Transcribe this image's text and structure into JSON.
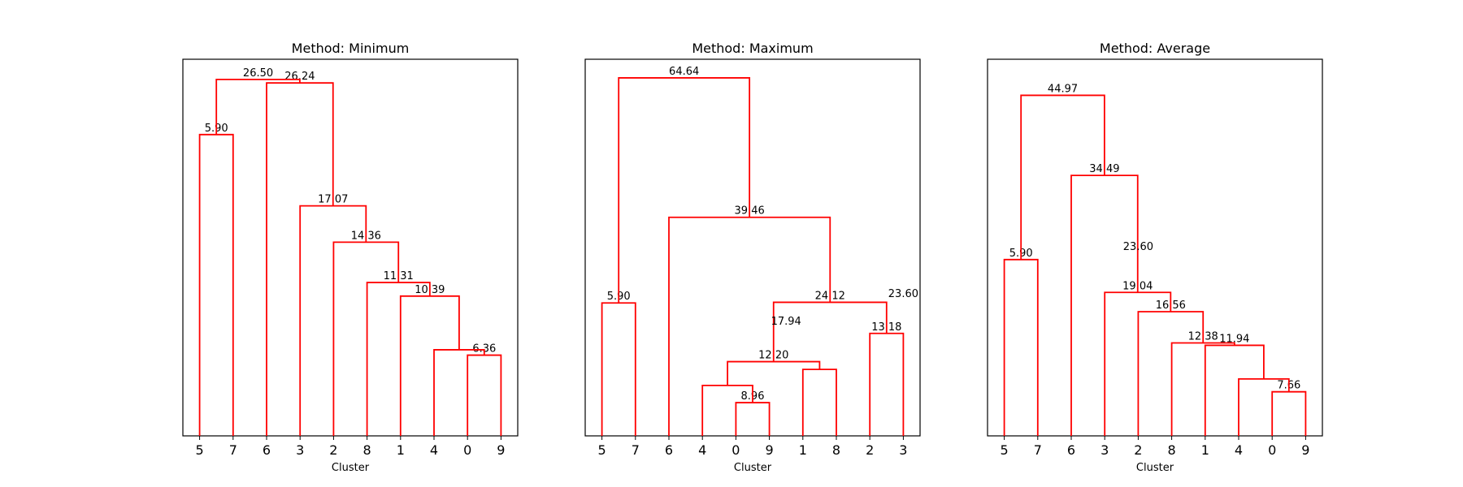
{
  "chart_data": [
    {
      "type": "dendrogram",
      "title": "Method: Minimum",
      "xlabel": "Cluster",
      "leaves": [
        "5",
        "7",
        "6",
        "3",
        "2",
        "8",
        "1",
        "4",
        "0",
        "9"
      ],
      "ylim": [
        0,
        28
      ],
      "color": "#ff0000",
      "merges": [
        {
          "left": 0,
          "right": 1,
          "height": 22.4,
          "label": "5.90"
        },
        {
          "left": 8,
          "right": 9,
          "height": 6.0,
          "label": "6.36"
        },
        {
          "left": 7,
          "right": "m1",
          "height": 6.4,
          "label": ""
        },
        {
          "left": 6,
          "right": "m2",
          "height": 10.39,
          "label": "10.39"
        },
        {
          "left": 5,
          "right": "m3",
          "height": 11.4,
          "label": "11.31"
        },
        {
          "left": 4,
          "right": "m4",
          "height": 14.4,
          "label": "14.36"
        },
        {
          "left": 3,
          "right": "m5",
          "height": 17.1,
          "label": "17.07"
        },
        {
          "left": 2,
          "right": "m6",
          "height": 26.24,
          "label": "26.24"
        },
        {
          "left": "m0",
          "right": "m7",
          "height": 26.5,
          "label": "26.50"
        }
      ]
    },
    {
      "type": "dendrogram",
      "title": "Method: Maximum",
      "xlabel": "Cluster",
      "leaves": [
        "5",
        "7",
        "6",
        "4",
        "0",
        "9",
        "1",
        "8",
        "2",
        "3"
      ],
      "ylim": [
        0,
        68
      ],
      "color": "#ff0000",
      "merges": [
        {
          "left": 0,
          "right": 1,
          "height": 24.0,
          "label": "5.90"
        },
        {
          "left": 4,
          "right": 5,
          "height": 6.0,
          "label": "8.96"
        },
        {
          "left": 3,
          "right": "m1",
          "height": 9.1,
          "label": ""
        },
        {
          "left": 6,
          "right": 7,
          "height": 12.0,
          "label": ""
        },
        {
          "left": "m2",
          "right": "m3",
          "height": 13.4,
          "label": "12.20"
        },
        {
          "left": 8,
          "right": 9,
          "height": 18.5,
          "label": "13.18"
        },
        {
          "left": "m4",
          "right": "m5",
          "height": 24.12,
          "label": "24.12"
        },
        {
          "left": 2,
          "right": "m6",
          "height": 39.46,
          "label": "39.46"
        },
        {
          "left": "m0",
          "right": "m7",
          "height": 64.64,
          "label": "64.64"
        }
      ],
      "extra_labels": [
        {
          "text": "17.94",
          "x_between": [
            4.5,
            6.5
          ],
          "height": 19.5
        },
        {
          "text": "23.60",
          "x_between": [
            9,
            9
          ],
          "height": 24.5
        }
      ]
    },
    {
      "type": "dendrogram",
      "title": "Method: Average",
      "xlabel": "Cluster",
      "leaves": [
        "5",
        "7",
        "6",
        "3",
        "2",
        "8",
        "1",
        "4",
        "0",
        "9"
      ],
      "ylim": [
        0,
        47
      ],
      "color": "#ff0000",
      "merges": [
        {
          "left": 0,
          "right": 1,
          "height": 22.0,
          "label": "5.90"
        },
        {
          "left": 8,
          "right": 9,
          "height": 5.5,
          "label": "7.66"
        },
        {
          "left": 7,
          "right": "m1",
          "height": 7.1,
          "label": ""
        },
        {
          "left": 6,
          "right": "m2",
          "height": 11.3,
          "label": "11.94"
        },
        {
          "left": 5,
          "right": "m3",
          "height": 11.6,
          "label": "12.38"
        },
        {
          "left": 4,
          "right": "m4",
          "height": 15.5,
          "label": "16.56"
        },
        {
          "left": 3,
          "right": "m5",
          "height": 17.9,
          "label": "19.04"
        },
        {
          "left": 2,
          "right": "m6",
          "height": 32.5,
          "label": "34.49"
        },
        {
          "left": "m0",
          "right": "m7",
          "height": 42.5,
          "label": "44.97"
        }
      ],
      "extra_labels": [
        {
          "text": "23.60",
          "x_between": [
            4,
            4
          ],
          "height": 22.8
        }
      ]
    }
  ]
}
